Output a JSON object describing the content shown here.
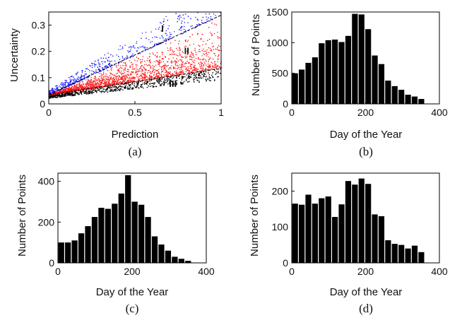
{
  "chart_data": [
    {
      "panel": "(a)",
      "type": "scatter",
      "xlabel": "Prediction",
      "ylabel": "Uncertainty",
      "xlim": [
        0,
        1
      ],
      "ylim": [
        0,
        0.35
      ],
      "xticks": [
        "0",
        "0.5",
        "1"
      ],
      "yticks": [
        "0",
        "0.1",
        "0.2",
        "0.3"
      ],
      "colors": {
        "I": "#1a1aff",
        "II": "#ff1a1a",
        "III": "#000000"
      },
      "region_labels": [
        {
          "label": "I",
          "x": 0.66,
          "y": 0.275
        },
        {
          "label": "II",
          "x": 0.8,
          "y": 0.19
        },
        {
          "label": "III",
          "x": 0.72,
          "y": 0.065
        }
      ],
      "boundaries": [
        {
          "name": "upper",
          "x": [
            0,
            1
          ],
          "y": [
            0.035,
            0.338
          ]
        },
        {
          "name": "lower",
          "x": [
            0,
            1
          ],
          "y": [
            0.035,
            0.135
          ]
        }
      ]
    },
    {
      "panel": "(b)",
      "type": "bar",
      "xlabel": "Day of the Year",
      "ylabel": "Number of Points",
      "xlim": [
        0,
        400
      ],
      "ylim": [
        0,
        1500
      ],
      "xticks": [
        "0",
        "200",
        "400"
      ],
      "yticks": [
        "0",
        "500",
        "1000",
        "1500"
      ],
      "bin_width": 18,
      "bin_starts": [
        0,
        18,
        36,
        54,
        72,
        90,
        108,
        126,
        144,
        162,
        180,
        198,
        216,
        234,
        252,
        270,
        288,
        306,
        324,
        342
      ],
      "values": [
        500,
        560,
        670,
        760,
        990,
        1040,
        1050,
        1010,
        1110,
        1470,
        1460,
        1220,
        790,
        650,
        380,
        290,
        230,
        150,
        120,
        80
      ]
    },
    {
      "panel": "(c)",
      "type": "bar",
      "xlabel": "Day of the Year",
      "ylabel": "Number of Points",
      "xlim": [
        0,
        400
      ],
      "ylim": [
        0,
        440
      ],
      "xticks": [
        "0",
        "200",
        "400"
      ],
      "yticks": [
        "0",
        "200",
        "400"
      ],
      "bin_width": 18,
      "bin_starts": [
        0,
        18,
        36,
        54,
        72,
        90,
        108,
        126,
        144,
        162,
        180,
        198,
        216,
        234,
        252,
        270,
        288,
        306,
        324,
        342
      ],
      "values": [
        100,
        100,
        110,
        145,
        180,
        225,
        270,
        265,
        290,
        340,
        430,
        300,
        285,
        225,
        130,
        90,
        60,
        30,
        20,
        10
      ]
    },
    {
      "panel": "(d)",
      "type": "bar",
      "xlabel": "Day of the Year",
      "ylabel": "Number of Points",
      "xlim": [
        0,
        400
      ],
      "ylim": [
        0,
        250
      ],
      "xticks": [
        "0",
        "200",
        "400"
      ],
      "yticks": [
        "0",
        "100",
        "200"
      ],
      "bin_width": 18,
      "bin_starts": [
        0,
        18,
        36,
        54,
        72,
        90,
        108,
        126,
        144,
        162,
        180,
        198,
        216,
        234,
        252,
        270,
        288,
        306,
        324,
        342
      ],
      "values": [
        165,
        162,
        190,
        165,
        180,
        185,
        128,
        163,
        228,
        218,
        235,
        220,
        135,
        130,
        63,
        53,
        50,
        40,
        48,
        30
      ]
    }
  ],
  "captions": [
    "(a)",
    "(b)",
    "(c)",
    "(d)"
  ]
}
